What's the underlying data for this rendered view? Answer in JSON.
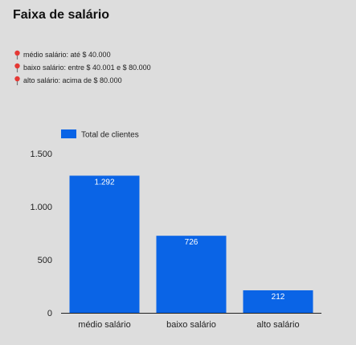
{
  "title": "Faixa de salário",
  "notes": [
    {
      "icon": "pin-icon",
      "text": "médio salário: até $ 40.000"
    },
    {
      "icon": "pin-icon",
      "text": "baixo salário: entre $ 40.001 e $ 80.000"
    },
    {
      "icon": "pin-icon",
      "text": "alto salário: acima de $ 80.000"
    }
  ],
  "colors": {
    "bar": "#0a64e6",
    "pin": "#e53935",
    "background": "#dddddd"
  },
  "chart_data": {
    "type": "bar",
    "title": "",
    "xlabel": "",
    "ylabel": "",
    "categories": [
      "médio salário",
      "baixo salário",
      "alto salário"
    ],
    "series": [
      {
        "name": "Total de clientes",
        "values": [
          1292,
          726,
          212
        ],
        "value_labels": [
          "1.292",
          "726",
          "212"
        ]
      }
    ],
    "ylim": [
      0,
      1500
    ],
    "yticks": [
      0,
      500,
      1000,
      1500
    ],
    "ytick_labels": [
      "0",
      "500",
      "1.000",
      "1.500"
    ],
    "grid": false,
    "legend_position": "top-left"
  }
}
